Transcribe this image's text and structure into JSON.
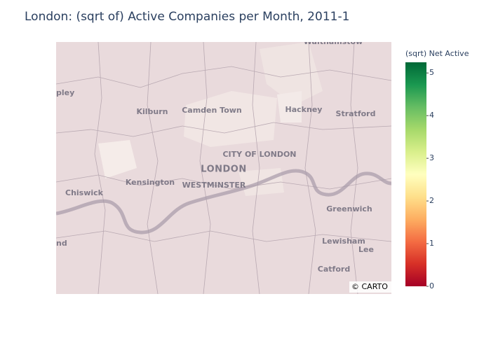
{
  "title": "London: (sqrt of) Active Companies per Month, 2011-1",
  "colorbar": {
    "title": "(sqrt) Net Active",
    "range": [
      0,
      5.25
    ],
    "ticks": [
      0,
      1,
      2,
      3,
      4,
      5
    ],
    "colors": [
      "#a50026",
      "#d73027",
      "#f46d43",
      "#fdae61",
      "#fee08b",
      "#ffffbf",
      "#d9ef8b",
      "#a6d96a",
      "#66bd63",
      "#1a9850",
      "#006837"
    ]
  },
  "map": {
    "attribution": "© CARTO",
    "labels": [
      "Walthamstow",
      "pley",
      "Kilburn",
      "Camden Town",
      "Hackney",
      "Stratford",
      "CITY OF LONDON",
      "LONDON",
      "Kensington",
      "WESTMINSTER",
      "Chiswick",
      "Greenwich",
      "nd",
      "Lewisham",
      "Lee",
      "Catford"
    ]
  }
}
